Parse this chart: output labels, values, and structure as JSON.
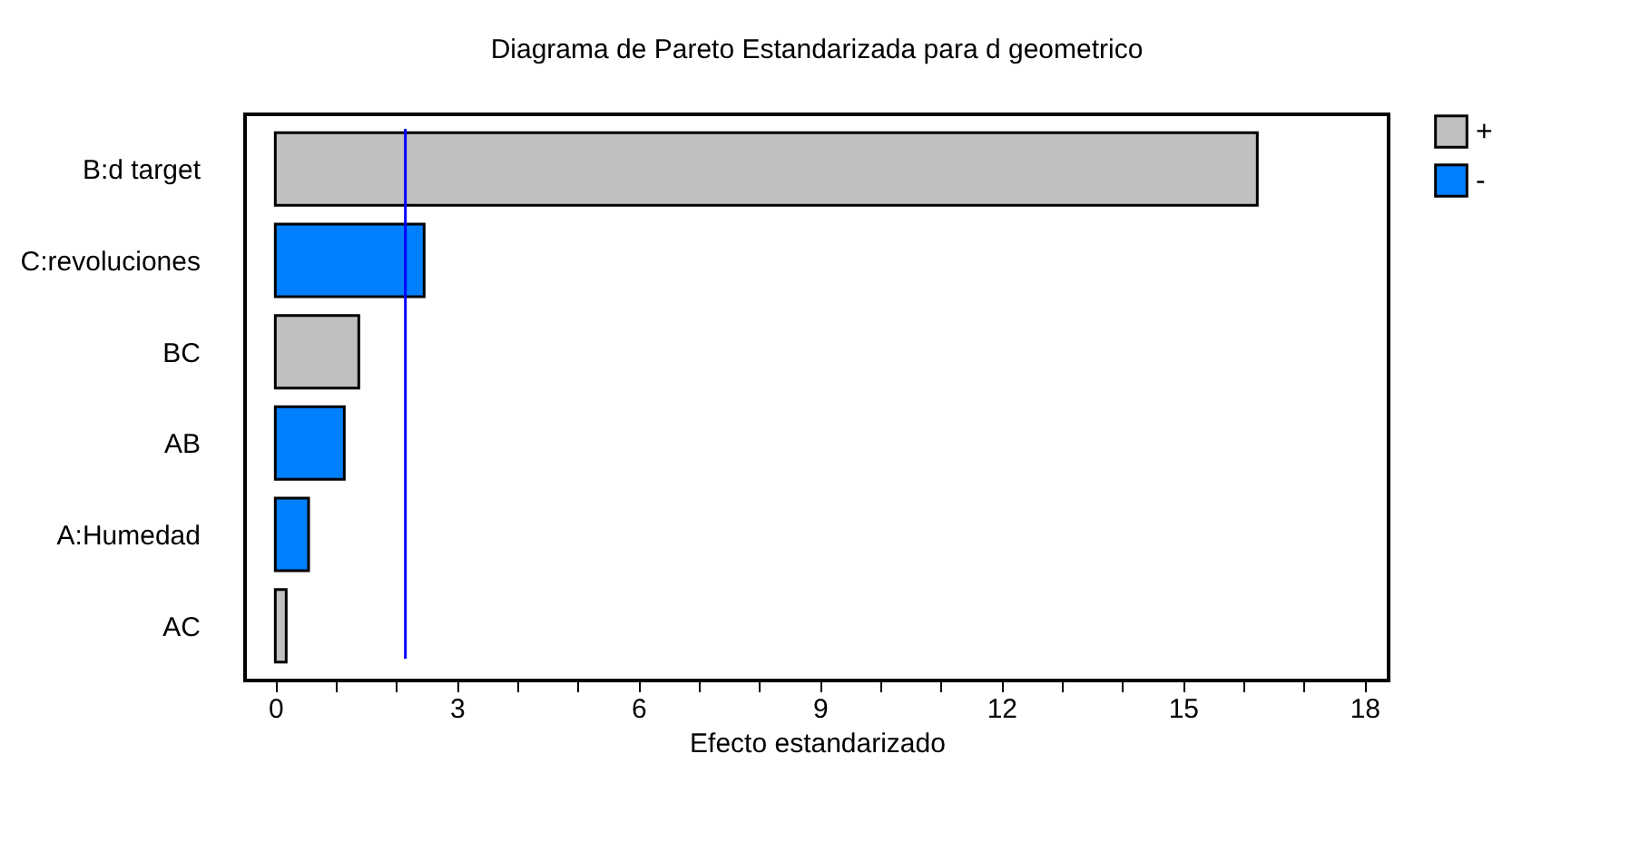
{
  "chart_data": {
    "type": "bar",
    "orientation": "horizontal",
    "title": "Diagrama de Pareto Estandarizada para d geometrico",
    "xlabel": "Efecto estandarizado",
    "categories": [
      "B:d target",
      "C:revoluciones",
      "BC",
      "AB",
      "A:Humedad",
      "AC"
    ],
    "series": [
      {
        "name": "+",
        "color": "#c0c0c0",
        "values": [
          16.23,
          null,
          1.38,
          null,
          null,
          0.18
        ]
      },
      {
        "name": "-",
        "color": "#0080ff",
        "values": [
          null,
          2.46,
          null,
          1.14,
          0.55,
          null
        ]
      }
    ],
    "xlim": [
      -0.5,
      18.4
    ],
    "xticks": [
      0,
      {
        "value": 1,
        "label": null
      },
      {
        "value": 2,
        "label": null
      },
      3,
      {
        "value": 4,
        "label": null
      },
      {
        "value": 5,
        "label": null
      },
      6,
      {
        "value": 7,
        "label": null
      },
      {
        "value": 8,
        "label": null
      },
      9,
      {
        "value": 10,
        "label": null
      },
      {
        "value": 11,
        "label": null
      },
      12,
      {
        "value": 13,
        "label": null
      },
      {
        "value": 14,
        "label": null
      },
      15,
      {
        "value": 16,
        "label": null
      },
      {
        "value": 17,
        "label": null
      },
      18
    ],
    "ref_lines": [
      {
        "axis": "x",
        "value": 2.15,
        "color": "#0000ff"
      }
    ],
    "grid": false,
    "legend": "top right"
  }
}
